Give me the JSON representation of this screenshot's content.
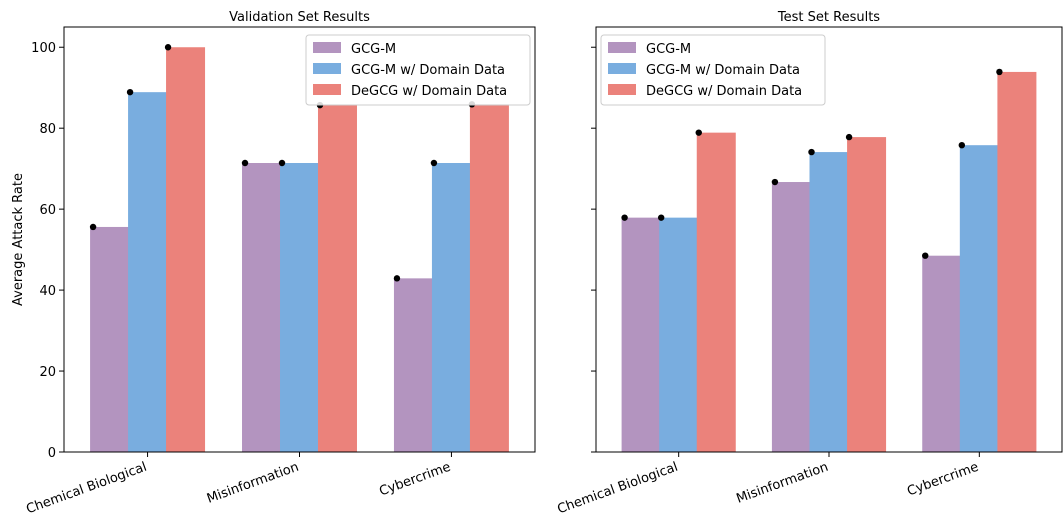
{
  "colors": {
    "GCG-M": "#b394bf",
    "GCG-M w/ Domain Data": "#79addf",
    "DeGCG w/ Domain Data": "#eb827b",
    "marker": "#000000"
  },
  "chart_data": [
    {
      "type": "bar",
      "title": "Validation Set Results",
      "ylabel": "Average Attack Rate",
      "xlabel": "",
      "categories": [
        "Chemical Biological",
        "Misinformation",
        "Cybercrime"
      ],
      "series": [
        {
          "name": "GCG-M",
          "values": [
            55.6,
            71.4,
            42.9
          ]
        },
        {
          "name": "GCG-M w/ Domain Data",
          "values": [
            88.9,
            71.4,
            71.4
          ]
        },
        {
          "name": "DeGCG w/ Domain Data",
          "values": [
            100,
            85.7,
            85.9
          ]
        }
      ],
      "ylim": [
        0,
        105
      ],
      "yticks": [
        0,
        20,
        40,
        60,
        80,
        100
      ],
      "legend": "top-right",
      "grid": false
    },
    {
      "type": "bar",
      "title": "Test Set Results",
      "ylabel": "",
      "xlabel": "",
      "categories": [
        "Chemical Biological",
        "Misinformation",
        "Cybercrime"
      ],
      "series": [
        {
          "name": "GCG-M",
          "values": [
            57.9,
            66.7,
            48.5
          ]
        },
        {
          "name": "GCG-M w/ Domain Data",
          "values": [
            57.9,
            74.1,
            75.8
          ]
        },
        {
          "name": "DeGCG w/ Domain Data",
          "values": [
            78.9,
            77.8,
            93.9
          ]
        }
      ],
      "ylim": [
        0,
        105
      ],
      "yticks": [
        0,
        20,
        40,
        60,
        80,
        100
      ],
      "legend": "top-left",
      "grid": false
    }
  ]
}
